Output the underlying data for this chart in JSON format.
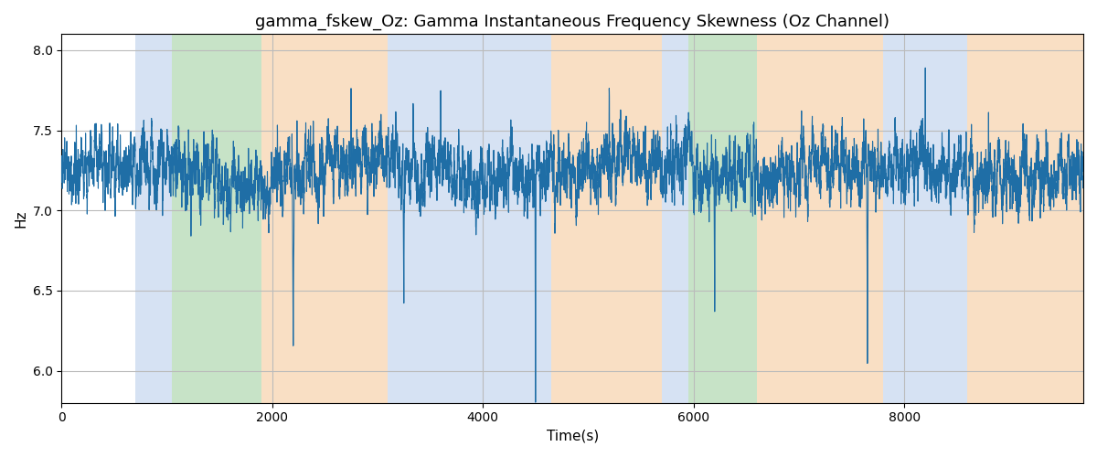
{
  "title": "gamma_fskew_Oz: Gamma Instantaneous Frequency Skewness (Oz Channel)",
  "xlabel": "Time(s)",
  "ylabel": "Hz",
  "ylim": [
    5.8,
    8.1
  ],
  "xlim": [
    0,
    9700
  ],
  "line_color": "#1f6ea6",
  "line_width": 0.8,
  "bg_color": "#ffffff",
  "grid_color": "#bbbbbb",
  "colored_bands": [
    {
      "xmin": 700,
      "xmax": 1050,
      "color": "#aec6e8",
      "alpha": 0.5
    },
    {
      "xmin": 1050,
      "xmax": 1900,
      "color": "#90c990",
      "alpha": 0.5
    },
    {
      "xmin": 1900,
      "xmax": 3100,
      "color": "#f4c08a",
      "alpha": 0.5
    },
    {
      "xmin": 3100,
      "xmax": 4650,
      "color": "#aec6e8",
      "alpha": 0.5
    },
    {
      "xmin": 4650,
      "xmax": 5700,
      "color": "#f4c08a",
      "alpha": 0.5
    },
    {
      "xmin": 5700,
      "xmax": 5950,
      "color": "#aec6e8",
      "alpha": 0.5
    },
    {
      "xmin": 5950,
      "xmax": 6600,
      "color": "#90c990",
      "alpha": 0.5
    },
    {
      "xmin": 6600,
      "xmax": 7800,
      "color": "#f4c08a",
      "alpha": 0.5
    },
    {
      "xmin": 7800,
      "xmax": 8600,
      "color": "#aec6e8",
      "alpha": 0.5
    },
    {
      "xmin": 8600,
      "xmax": 9700,
      "color": "#f4c08a",
      "alpha": 0.5
    }
  ],
  "seed": 42,
  "n_points": 9600,
  "mean_val": 7.25,
  "title_fontsize": 13
}
